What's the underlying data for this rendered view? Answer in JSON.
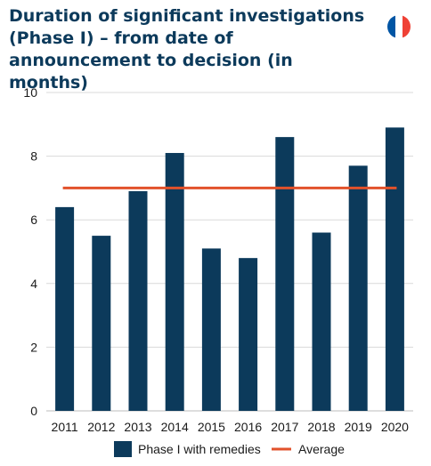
{
  "chart_data": {
    "type": "bar",
    "title": "Duration of significant investigations (Phase I) – from date of announcement to decision (in months)",
    "categories": [
      "2011",
      "2012",
      "2013",
      "2014",
      "2015",
      "2016",
      "2017",
      "2018",
      "2019",
      "2020"
    ],
    "series": [
      {
        "name": "Phase I with remedies",
        "type": "bar",
        "color": "#0c3a5b",
        "values": [
          6.4,
          5.5,
          6.9,
          8.1,
          5.1,
          4.8,
          8.6,
          5.6,
          7.7,
          8.9
        ]
      },
      {
        "name": "Average",
        "type": "line",
        "color": "#e2522b",
        "values": [
          7,
          7,
          7,
          7,
          7,
          7,
          7,
          7,
          7,
          7
        ]
      }
    ],
    "yticks": [
      "0",
      "2",
      "4",
      "6",
      "8",
      "10"
    ],
    "ylim": [
      0,
      10
    ],
    "grid": true,
    "legend": "bottom",
    "xlabel": "",
    "ylabel": ""
  },
  "flag": {
    "icon": "france-flag-icon",
    "colors": [
      "#0055a4",
      "#ffffff",
      "#ef4135"
    ]
  }
}
